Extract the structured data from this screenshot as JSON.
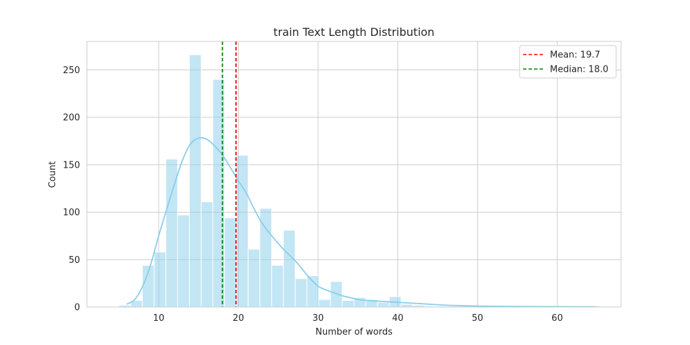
{
  "chart_data": {
    "type": "bar",
    "title": "train Text Length Distribution",
    "xlabel": "Number of words",
    "ylabel": "Count",
    "xlim": [
      1,
      68
    ],
    "ylim": [
      0,
      280
    ],
    "xticks": [
      10,
      20,
      30,
      40,
      50,
      60
    ],
    "yticks": [
      0,
      50,
      100,
      150,
      200,
      250
    ],
    "grid": true,
    "legend_position": "top-right",
    "bin_width": 1.475,
    "bin_edges": [
      5.0,
      6.475,
      7.95,
      9.425,
      10.9,
      12.375,
      13.85,
      15.325,
      16.8,
      18.275,
      19.75,
      21.225,
      22.7,
      24.175,
      25.65,
      27.125,
      28.6,
      30.075,
      31.55,
      33.025,
      34.5,
      35.975,
      37.45,
      38.925,
      40.4,
      41.875,
      43.35,
      44.825,
      46.3,
      47.775,
      49.25,
      50.725,
      52.2,
      53.675,
      55.15,
      56.625,
      58.1,
      59.575,
      61.05,
      62.525,
      64.0,
      65.475
    ],
    "values": [
      2,
      7,
      44,
      58,
      156,
      97,
      266,
      111,
      240,
      94,
      160,
      61,
      104,
      44,
      81,
      30,
      33,
      8,
      27,
      7,
      10,
      8,
      5,
      11,
      3,
      2,
      1,
      1,
      1,
      1,
      1,
      1,
      1,
      1,
      0,
      0,
      0,
      0,
      0,
      0,
      1
    ],
    "bar_color": "#87CEEB",
    "kde": {
      "color": "#87CEEB",
      "x": [
        6,
        7,
        8,
        9,
        10,
        11,
        12,
        13,
        14,
        15,
        16,
        17,
        18,
        19,
        20,
        21,
        22,
        23,
        24,
        25,
        26,
        27,
        28,
        29,
        30,
        31,
        32,
        33,
        34,
        35,
        36,
        38,
        40,
        42,
        44,
        46,
        48,
        50,
        55,
        60,
        65
      ],
      "y": [
        3,
        8,
        22,
        45,
        75,
        103,
        130,
        155,
        172,
        178,
        177,
        170,
        160,
        147,
        133,
        120,
        103,
        88,
        77,
        67,
        58,
        50,
        40,
        30,
        22,
        18,
        15,
        12,
        10,
        8,
        7,
        6,
        5,
        4,
        3,
        2,
        1.5,
        1,
        0.6,
        0.4,
        0.3
      ]
    },
    "reference_lines": [
      {
        "name": "Mean: 19.7",
        "value": 19.7,
        "color": "#FF0000",
        "style": "dashed"
      },
      {
        "name": "Median: 18.0",
        "value": 18.0,
        "color": "#008000",
        "style": "dashed"
      }
    ]
  }
}
